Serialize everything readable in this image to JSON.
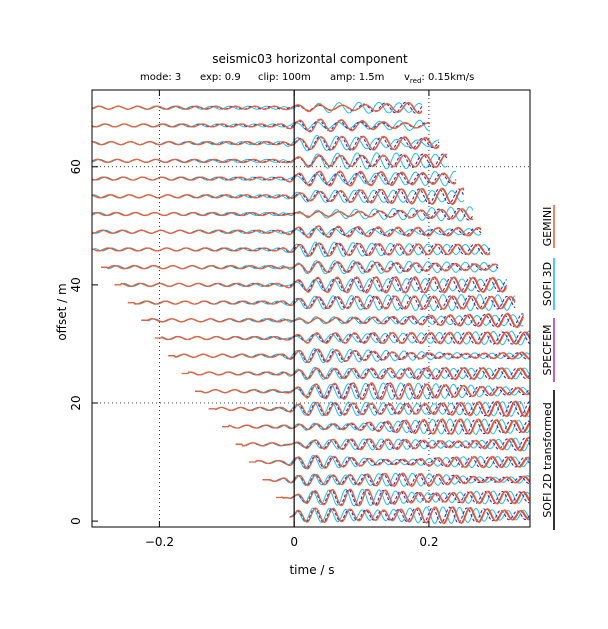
{
  "chart_data": {
    "type": "line",
    "title": "seismic03 horizontal component",
    "subtitle": {
      "mode": "mode: 3",
      "exp": "exp: 0.9",
      "clip": "clip: 100m",
      "amp": "amp: 1.5m",
      "vred_prefix": "v",
      "vred_sub": "red",
      "vred_value": ": 0.15km/s"
    },
    "xlabel": "time / s",
    "ylabel": "offset / m",
    "xlim": [
      -0.3,
      0.35
    ],
    "ylim": [
      -1,
      73
    ],
    "xticks": [
      {
        "v": -0.2,
        "label": "−0.2"
      },
      {
        "v": 0,
        "label": "0"
      },
      {
        "v": 0.2,
        "label": "0.2"
      }
    ],
    "yticks": [
      {
        "v": 0,
        "label": "0"
      },
      {
        "v": 20,
        "label": "20"
      },
      {
        "v": 40,
        "label": "40"
      },
      {
        "v": 60,
        "label": "60"
      }
    ],
    "grid": {
      "x": [
        -0.2,
        0.2
      ],
      "y": [
        20,
        60
      ],
      "style": "dotted"
    },
    "zero_line_x": 0,
    "offsets": [
      1,
      4,
      7,
      10,
      13,
      16,
      19,
      22,
      25,
      28,
      31,
      34,
      37,
      40,
      43,
      46,
      49,
      52,
      55,
      58,
      61,
      64,
      67,
      70
    ],
    "reduction_velocity_m_per_s": 150,
    "series": [
      {
        "name": "GEMINI",
        "color": "#e8643c"
      },
      {
        "name": "SOFI 3D",
        "color": "#20c0e8"
      },
      {
        "name": "SPECFEM",
        "color": "#c03a8e"
      },
      {
        "name": "SOFI 2D transformed",
        "color": "#000000"
      }
    ],
    "trace_colors": {
      "blue_dashed": "#2030c8",
      "red": "#e02020"
    },
    "legend_placement": "right"
  }
}
